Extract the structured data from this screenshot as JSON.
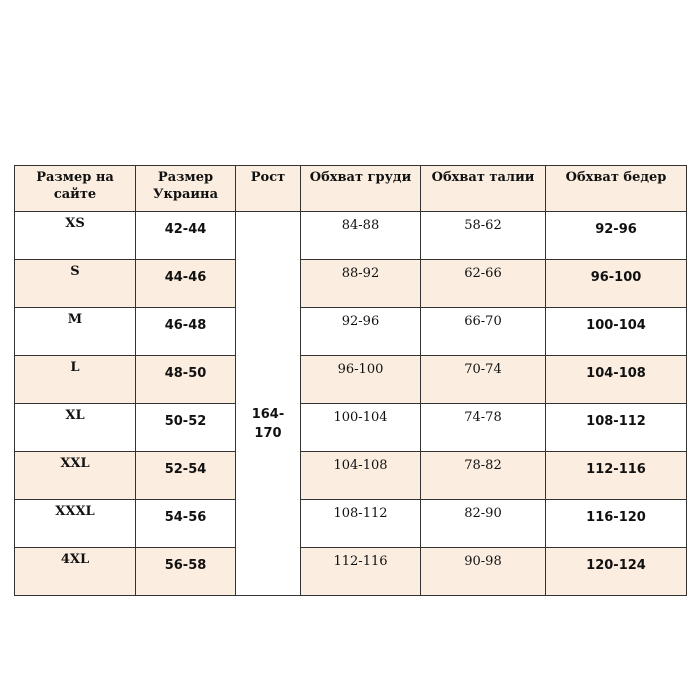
{
  "table": {
    "headers": [
      "Размер на сайте",
      "Размер Украина",
      "Рост",
      "Обхват груди",
      "Обхват талии",
      "Обхват бедер"
    ],
    "height": "164-170",
    "rows": [
      {
        "site": "XS",
        "ua": "42-44",
        "chest": "84-88",
        "waist": "58-62",
        "hips": "92-96"
      },
      {
        "site": "S",
        "ua": "44-46",
        "chest": "88-92",
        "waist": "62-66",
        "hips": "96-100"
      },
      {
        "site": "M",
        "ua": "46-48",
        "chest": "92-96",
        "waist": "66-70",
        "hips": "100-104"
      },
      {
        "site": "L",
        "ua": "48-50",
        "chest": "96-100",
        "waist": "70-74",
        "hips": "104-108"
      },
      {
        "site": "XL",
        "ua": "50-52",
        "chest": "100-104",
        "waist": "74-78",
        "hips": "108-112"
      },
      {
        "site": "XXL",
        "ua": "52-54",
        "chest": "104-108",
        "waist": "78-82",
        "hips": "112-116"
      },
      {
        "site": "XXXL",
        "ua": "54-56",
        "chest": "108-112",
        "waist": "82-90",
        "hips": "116-120"
      },
      {
        "site": "4XL",
        "ua": "56-58",
        "chest": "112-116",
        "waist": "90-98",
        "hips": "120-124"
      }
    ]
  },
  "colors": {
    "row_highlight": "#fbeee0"
  }
}
